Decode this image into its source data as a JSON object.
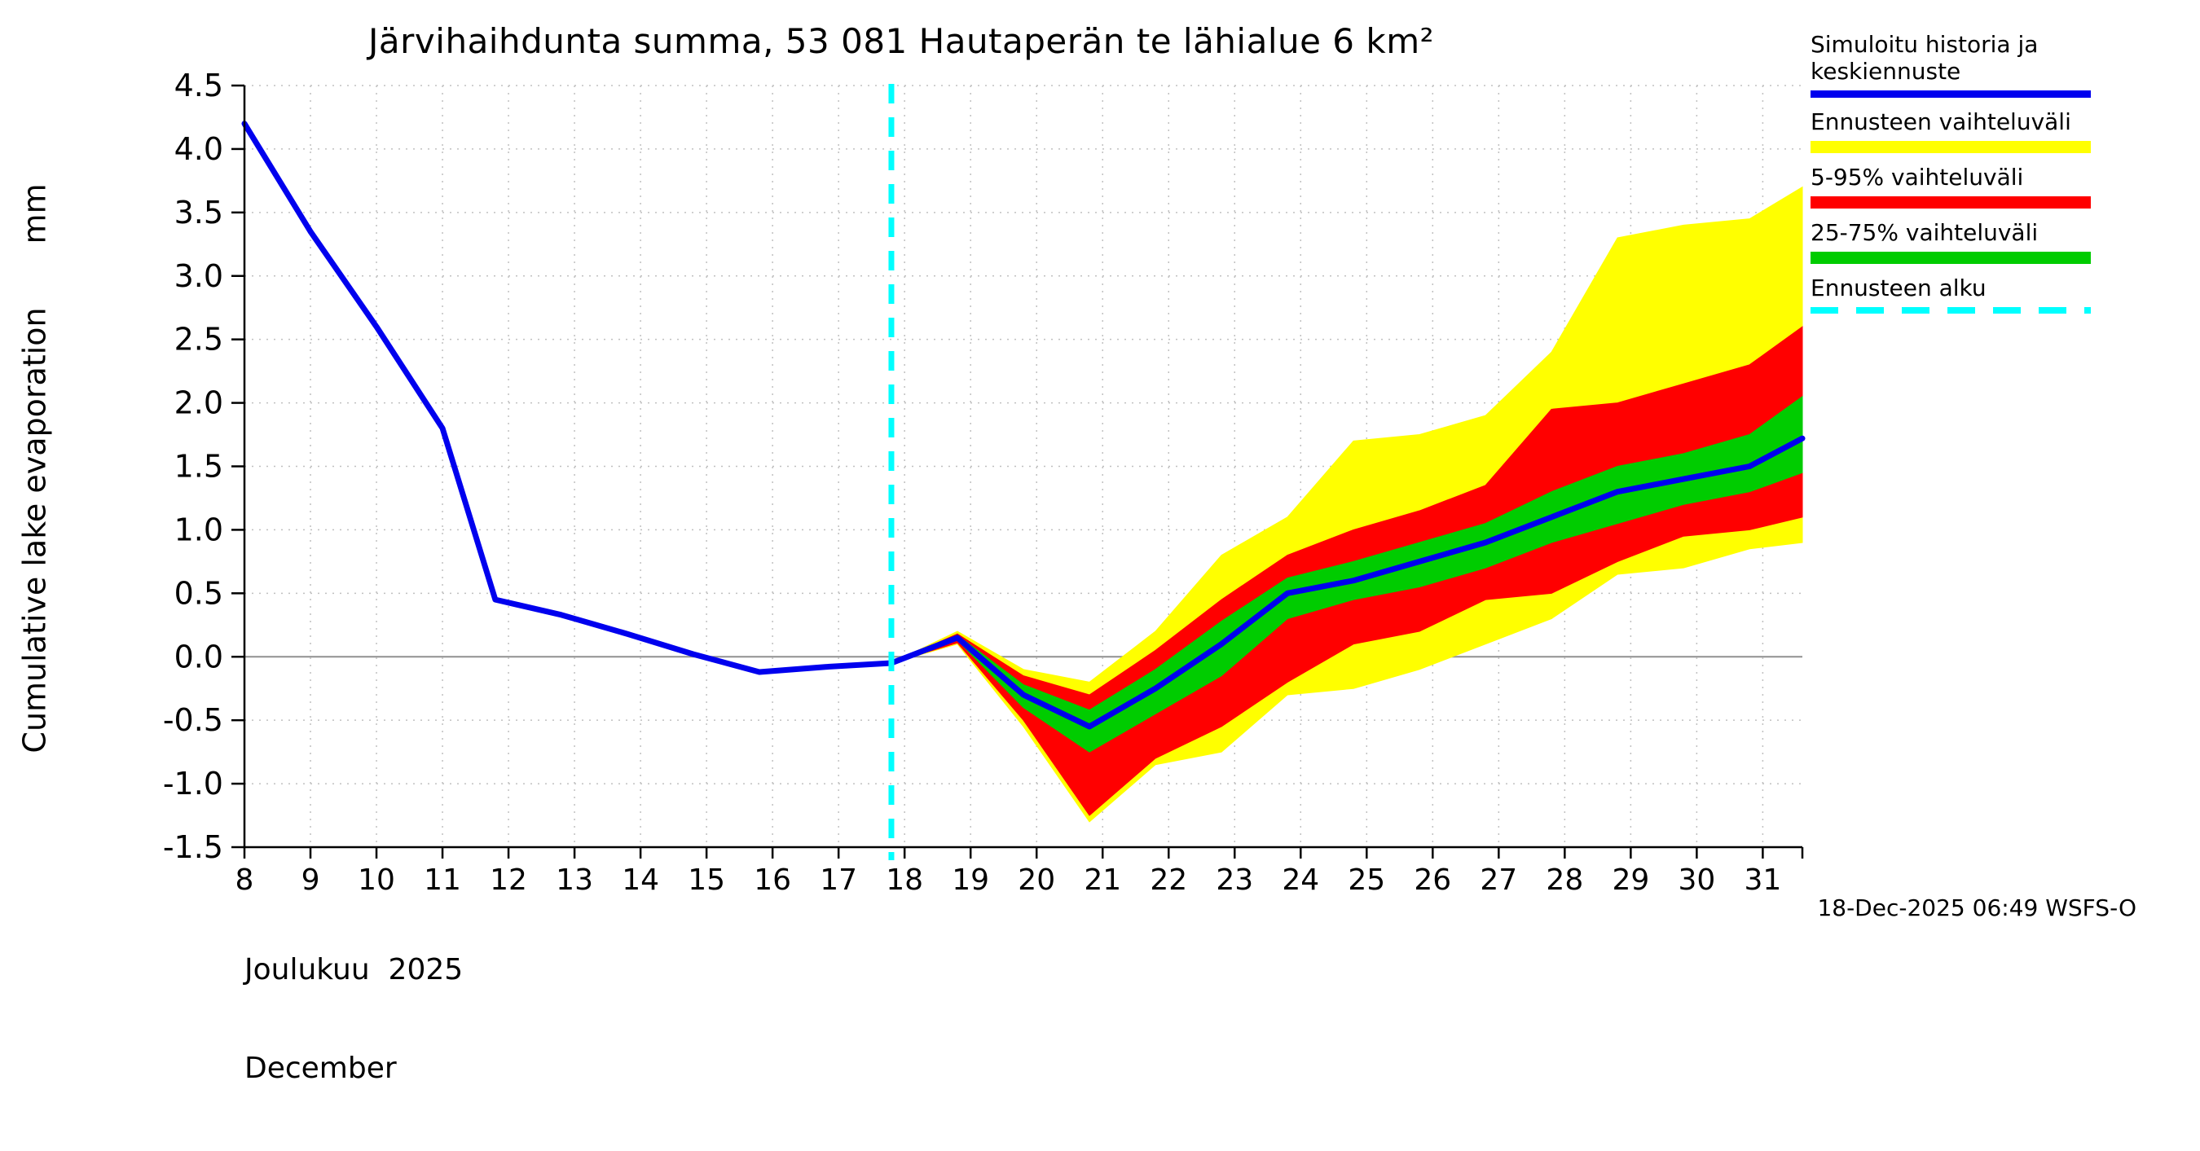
{
  "chart_data": {
    "type": "line",
    "title": "Järvihaihdunta summa, 53 081 Hautaperän te lähialue 6 km²",
    "ylabel": "Cumulative lake evaporation",
    "ylabel_unit": "mm",
    "xlabel_month": "Joulukuu  2025",
    "xlabel_month_en": "December",
    "xlim": [
      8,
      31.6
    ],
    "ylim": [
      -1.5,
      4.5
    ],
    "x_ticks": [
      8,
      9,
      10,
      11,
      12,
      13,
      14,
      15,
      16,
      17,
      18,
      19,
      20,
      21,
      22,
      23,
      24,
      25,
      26,
      27,
      28,
      29,
      30,
      31
    ],
    "y_tick_values": [
      4.5,
      4.0,
      3.5,
      3.0,
      2.5,
      2.0,
      1.5,
      1.0,
      0.5,
      0.0,
      -0.5,
      -1.0,
      -1.5
    ],
    "y_tick_labels": [
      "4.5",
      "4.0",
      "3.5",
      "3.0",
      "2.5",
      "2.0",
      "1.5",
      "1.0",
      "0.5",
      "0.0",
      "-0.5",
      "-1.0",
      "-1.5"
    ],
    "grid": true,
    "forecast_start_x": 17.8,
    "colors": {
      "line": "#0000ee",
      "band_outer": "#ffff00",
      "band_5_95": "#ff0000",
      "band_25_75": "#00cc00",
      "forecast_start": "#00ffff",
      "grid": "#c0c0c0",
      "zero_line": "#909090",
      "axis": "#000000"
    },
    "history": {
      "x": [
        8,
        9,
        10,
        11,
        11.8,
        12.8,
        13.8,
        14.8,
        15.8,
        16.8,
        17.8
      ],
      "y": [
        4.2,
        3.35,
        2.6,
        1.8,
        0.45,
        0.33,
        0.18,
        0.02,
        -0.12,
        -0.08,
        -0.05
      ]
    },
    "forecast_x": [
      17.8,
      18.8,
      19.8,
      20.8,
      21.8,
      22.8,
      23.8,
      24.8,
      25.8,
      26.8,
      27.8,
      28.8,
      29.8,
      30.8,
      31.6
    ],
    "forecast_median": {
      "y": [
        -0.05,
        0.15,
        -0.3,
        -0.55,
        -0.25,
        0.1,
        0.5,
        0.6,
        0.75,
        0.9,
        1.1,
        1.3,
        1.4,
        1.5,
        1.72
      ]
    },
    "bands": [
      {
        "name": "band-outer-range",
        "label": "Ennusteen vaihteluväli",
        "color": "#ffff00",
        "lower": [
          -0.05,
          0.1,
          -0.55,
          -1.3,
          -0.85,
          -0.75,
          -0.3,
          -0.25,
          -0.1,
          0.1,
          0.3,
          0.65,
          0.7,
          0.85,
          0.9
        ],
        "upper": [
          -0.05,
          0.2,
          -0.1,
          -0.2,
          0.2,
          0.8,
          1.1,
          1.7,
          1.75,
          1.9,
          2.4,
          3.3,
          3.4,
          3.45,
          3.7
        ]
      },
      {
        "name": "band-5-95",
        "label": "5-95% vaihteluväli",
        "color": "#ff0000",
        "lower": [
          -0.05,
          0.11,
          -0.5,
          -1.25,
          -0.8,
          -0.55,
          -0.2,
          0.1,
          0.2,
          0.45,
          0.5,
          0.75,
          0.95,
          1.0,
          1.1
        ],
        "upper": [
          -0.05,
          0.18,
          -0.15,
          -0.3,
          0.05,
          0.45,
          0.8,
          1.0,
          1.15,
          1.35,
          1.95,
          2.0,
          2.15,
          2.3,
          2.6
        ]
      },
      {
        "name": "band-25-75",
        "label": "25-75% vaihteluväli",
        "color": "#00cc00",
        "lower": [
          -0.05,
          0.13,
          -0.4,
          -0.75,
          -0.45,
          -0.15,
          0.3,
          0.45,
          0.55,
          0.7,
          0.9,
          1.05,
          1.2,
          1.3,
          1.45
        ],
        "upper": [
          -0.05,
          0.17,
          -0.22,
          -0.42,
          -0.1,
          0.28,
          0.62,
          0.75,
          0.9,
          1.05,
          1.3,
          1.5,
          1.6,
          1.75,
          2.05
        ]
      }
    ],
    "legend": [
      {
        "label": "Simuloitu historia ja keskiennuste",
        "color": "#0000ee",
        "style": "line"
      },
      {
        "label": "Ennusteen vaihteluväli",
        "color": "#ffff00",
        "style": "band"
      },
      {
        "label": "5-95% vaihteluväli",
        "color": "#ff0000",
        "style": "band"
      },
      {
        "label": "25-75% vaihteluväli",
        "color": "#00cc00",
        "style": "band"
      },
      {
        "label": "Ennusteen alku",
        "color": "#00ffff",
        "style": "dashed"
      }
    ],
    "legend_position": "top-right"
  },
  "footer": {
    "timestamp": "18-Dec-2025 06:49 WSFS-O"
  }
}
